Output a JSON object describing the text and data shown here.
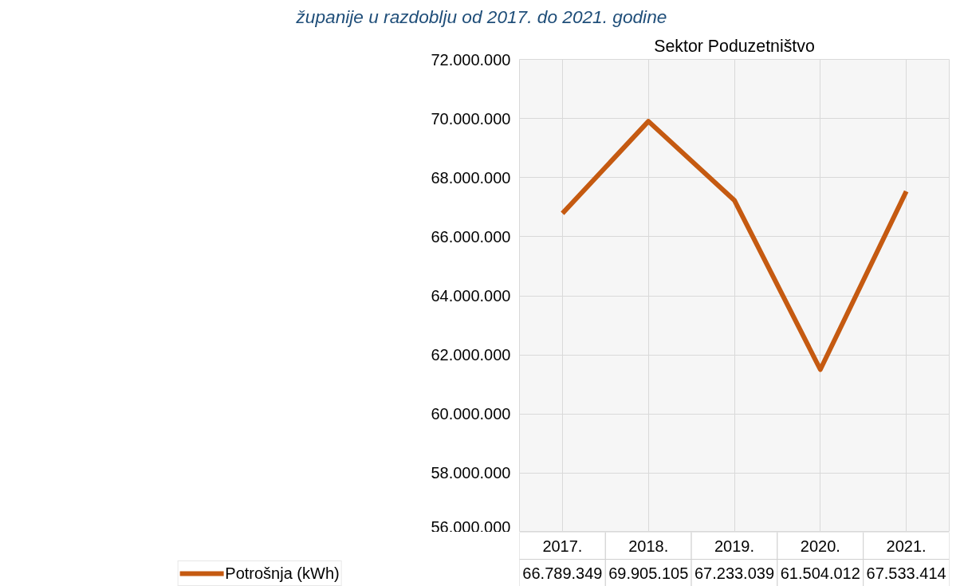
{
  "chart_data": {
    "type": "line",
    "title": "Sektor Poduzetništvo",
    "annotations": [
      "županije u razdoblju od 2017. do 2021. godine"
    ],
    "categories": [
      "2017.",
      "2018.",
      "2019.",
      "2020.",
      "2021."
    ],
    "series": [
      {
        "name": "Potrošnja (kWh)",
        "color": "#c55a11",
        "values": [
          66789349,
          69905105,
          67233039,
          61504012,
          67533414
        ]
      }
    ],
    "ylim": [
      56000000,
      72000000
    ],
    "yticks": [
      {
        "value": 56000000,
        "label": "56.000.000"
      },
      {
        "value": 58000000,
        "label": "58.000.000"
      },
      {
        "value": 60000000,
        "label": "60.000.000"
      },
      {
        "value": 62000000,
        "label": "62.000.000"
      },
      {
        "value": 64000000,
        "label": "64.000.000"
      },
      {
        "value": 66000000,
        "label": "66.000.000"
      },
      {
        "value": 68000000,
        "label": "68.000.000"
      },
      {
        "value": 70000000,
        "label": "70.000.000"
      },
      {
        "value": 72000000,
        "label": "72.000.000"
      }
    ],
    "value_labels": [
      "66.789.349",
      "69.905.105",
      "67.233.039",
      "61.504.012",
      "67.533.414"
    ],
    "grid": true,
    "legend": "bottom",
    "marker": "none",
    "line_style": "solid"
  }
}
